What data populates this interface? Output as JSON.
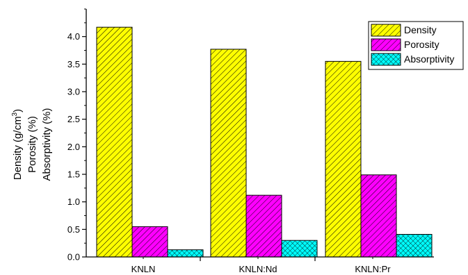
{
  "chart_data": {
    "type": "bar",
    "categories": [
      "KNLN",
      "KNLN:Nd",
      "KNLN:Pr"
    ],
    "series": [
      {
        "name": "Density",
        "values": [
          4.17,
          3.77,
          3.55
        ],
        "color": "#ffff00",
        "pattern": "diagonal-hatch"
      },
      {
        "name": "Porosity",
        "values": [
          0.55,
          1.12,
          1.49
        ],
        "color": "#ff00ff",
        "pattern": "diagonal-hatch"
      },
      {
        "name": "Absorptivity",
        "values": [
          0.13,
          0.3,
          0.41
        ],
        "color": "#00ffff",
        "pattern": "crosshatch"
      }
    ],
    "ylim": [
      0,
      4.5
    ],
    "yticks": [
      "0.0",
      "0.5",
      "1.0",
      "1.5",
      "2.0",
      "2.5",
      "3.0",
      "3.5",
      "4.0"
    ],
    "ylabel_lines": [
      "Density (g/cm",
      "Porosity (%)",
      "Absorptivity (%)"
    ],
    "ylabel_superscript": "3",
    "ylabel_close": ")",
    "legend_position": "top-right",
    "grid": false
  }
}
